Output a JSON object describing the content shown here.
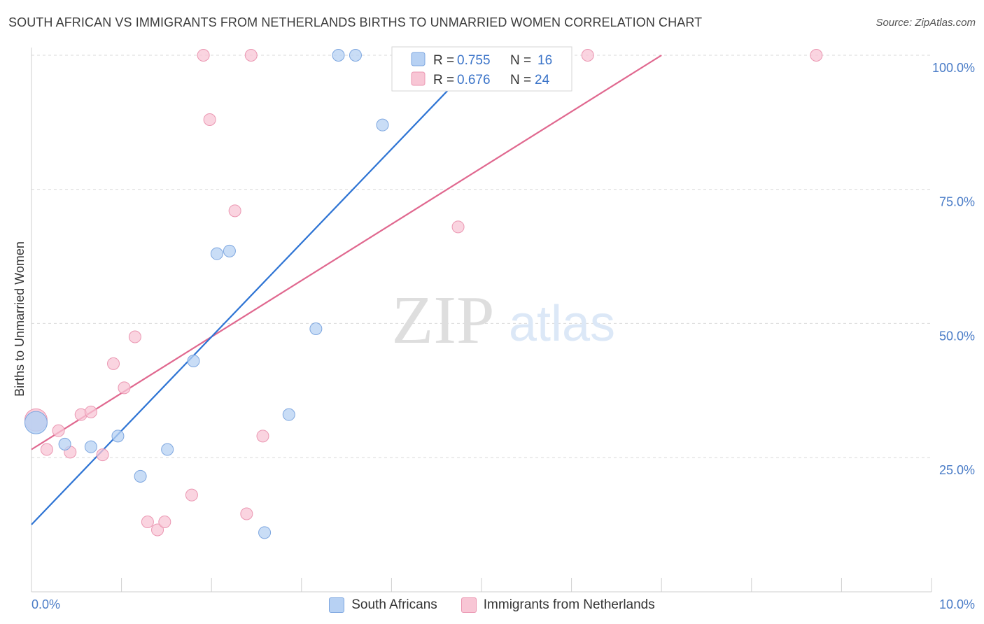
{
  "header": {
    "title": "SOUTH AFRICAN VS IMMIGRANTS FROM NETHERLANDS BIRTHS TO UNMARRIED WOMEN CORRELATION CHART",
    "source": "Source: ZipAtlas.com"
  },
  "watermark": {
    "zip": "ZIP",
    "atlas": "atlas"
  },
  "stats_legend": {
    "rows": [
      {
        "r_label": "R = ",
        "r_value": "0.755",
        "n_label": "N = ",
        "n_value": "16"
      },
      {
        "r_label": "R = ",
        "r_value": "0.676",
        "n_label": "N = ",
        "n_value": "24"
      }
    ]
  },
  "bottom_legend": {
    "items": [
      {
        "label": "South Africans"
      },
      {
        "label": "Immigrants from Netherlands"
      }
    ]
  },
  "colors": {
    "blue_fill": "#b7d1f3",
    "blue_stroke": "#7ea7e0",
    "blue_line": "#2e74d4",
    "pink_fill": "#f8c6d5",
    "pink_stroke": "#eb97b2",
    "pink_line": "#e0688f",
    "grid": "#d9d9d9",
    "tick_label": "#4a7cc7"
  },
  "chart_data": {
    "type": "scatter",
    "title": "SOUTH AFRICAN VS IMMIGRANTS FROM NETHERLANDS BIRTHS TO UNMARRIED WOMEN CORRELATION CHART",
    "xlabel": "",
    "ylabel": "Births to Unmarried Women",
    "xlim": [
      0,
      10
    ],
    "ylim": [
      0,
      102
    ],
    "x_tick_labels": [
      "0.0%",
      "10.0%"
    ],
    "y_ticks": [
      25,
      50,
      75,
      100
    ],
    "y_tick_labels": [
      "25.0%",
      "50.0%",
      "75.0%",
      "100.0%"
    ],
    "grid": true,
    "legend_position": "top-center",
    "series": [
      {
        "name": "South Africans",
        "color": "#b7d1f3",
        "r": 0.755,
        "n": 16,
        "points": [
          {
            "x": 0.05,
            "y": 31.5,
            "big": true
          },
          {
            "x": 0.37,
            "y": 27.5
          },
          {
            "x": 0.66,
            "y": 27.0
          },
          {
            "x": 0.96,
            "y": 29.0
          },
          {
            "x": 1.21,
            "y": 21.5
          },
          {
            "x": 1.51,
            "y": 26.5
          },
          {
            "x": 1.8,
            "y": 43.0
          },
          {
            "x": 2.06,
            "y": 63.0
          },
          {
            "x": 2.2,
            "y": 63.5
          },
          {
            "x": 2.59,
            "y": 11.0
          },
          {
            "x": 2.86,
            "y": 33.0
          },
          {
            "x": 3.16,
            "y": 49.0
          },
          {
            "x": 3.41,
            "y": 100.0
          },
          {
            "x": 3.6,
            "y": 100.0
          },
          {
            "x": 3.9,
            "y": 87.0
          },
          {
            "x": 4.27,
            "y": 100.0
          }
        ],
        "trend": {
          "x": [
            0.0,
            5.0
          ],
          "y": [
            12.5,
            100.0
          ]
        }
      },
      {
        "name": "Immigrants from Netherlands",
        "color": "#f8c6d5",
        "r": 0.676,
        "n": 24,
        "points": [
          {
            "x": 0.05,
            "y": 32.0,
            "big": true
          },
          {
            "x": 0.17,
            "y": 26.5
          },
          {
            "x": 0.3,
            "y": 30.0
          },
          {
            "x": 0.43,
            "y": 26.0
          },
          {
            "x": 0.55,
            "y": 33.0
          },
          {
            "x": 0.66,
            "y": 33.5
          },
          {
            "x": 0.79,
            "y": 25.5
          },
          {
            "x": 0.91,
            "y": 42.5
          },
          {
            "x": 1.03,
            "y": 38.0
          },
          {
            "x": 1.15,
            "y": 47.5
          },
          {
            "x": 1.29,
            "y": 13.0
          },
          {
            "x": 1.4,
            "y": 11.5
          },
          {
            "x": 1.48,
            "y": 13.0
          },
          {
            "x": 1.78,
            "y": 18.0
          },
          {
            "x": 1.91,
            "y": 100.0
          },
          {
            "x": 1.98,
            "y": 88.0
          },
          {
            "x": 2.26,
            "y": 71.0
          },
          {
            "x": 2.39,
            "y": 14.5
          },
          {
            "x": 2.44,
            "y": 100.0
          },
          {
            "x": 2.57,
            "y": 29.0
          },
          {
            "x": 4.74,
            "y": 68.0
          },
          {
            "x": 5.24,
            "y": 100.0
          },
          {
            "x": 6.18,
            "y": 100.0
          },
          {
            "x": 8.72,
            "y": 100.0
          }
        ],
        "trend": {
          "x": [
            0.0,
            7.0
          ],
          "y": [
            26.5,
            100.0
          ]
        }
      }
    ]
  }
}
